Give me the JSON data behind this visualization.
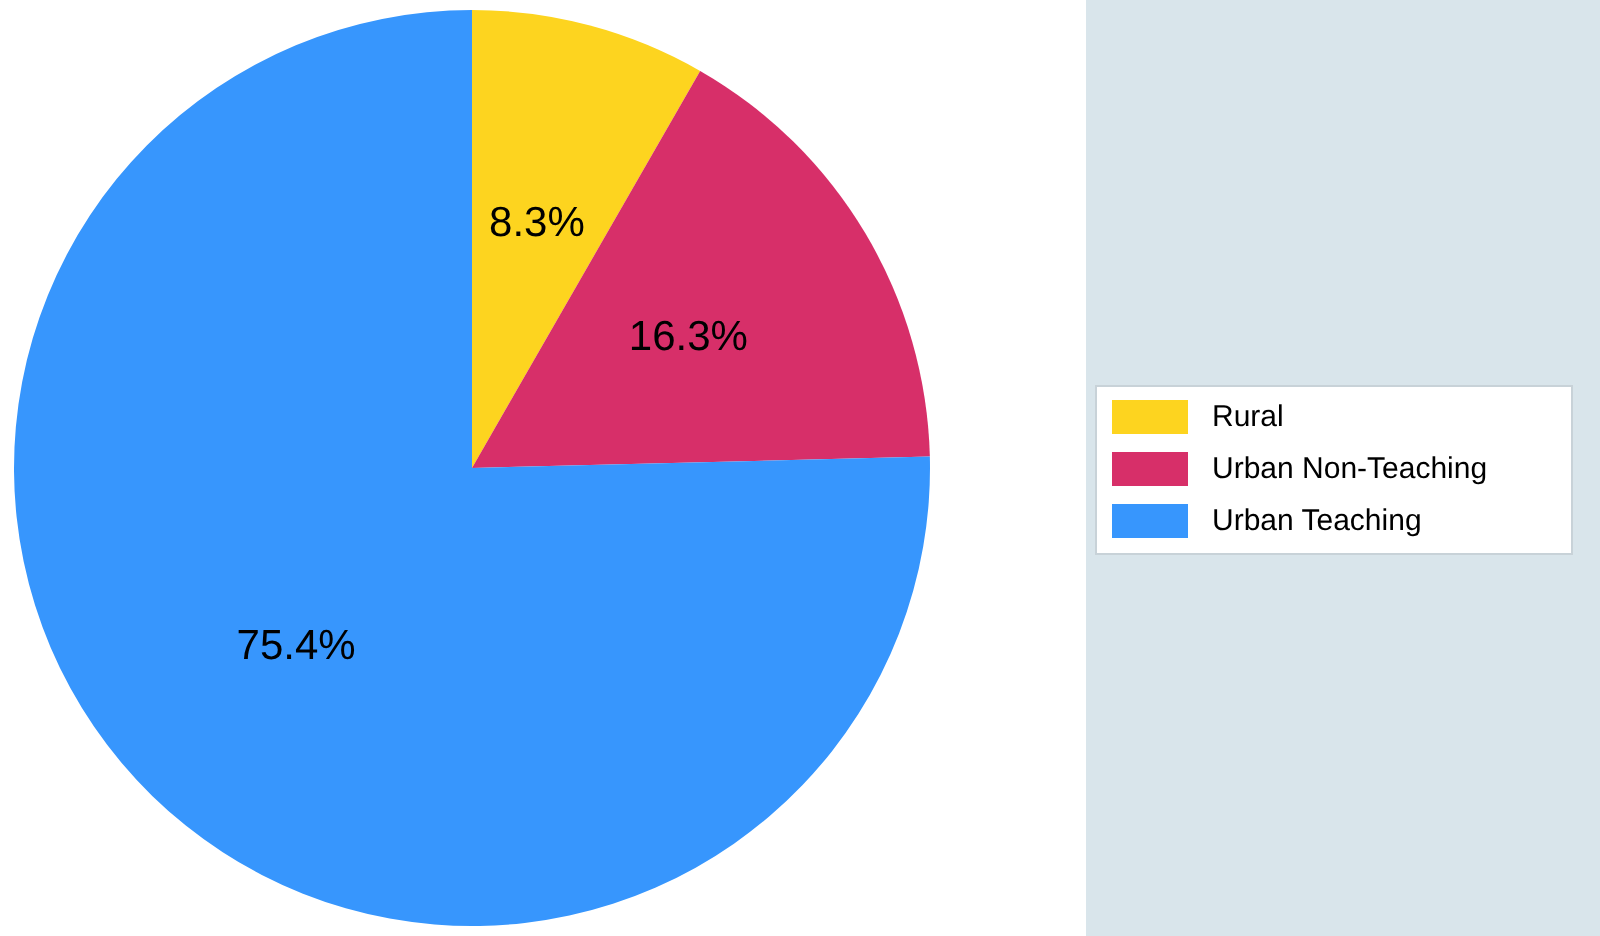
{
  "chart_data": {
    "type": "pie",
    "categories": [
      "Rural",
      "Urban Non-Teaching",
      "Urban Teaching"
    ],
    "values": [
      8.3,
      16.3,
      75.4
    ],
    "colors": [
      "#fdd41f",
      "#d72f69",
      "#3796fd"
    ],
    "value_labels": [
      "8.3%",
      "16.3%",
      "75.4%"
    ],
    "legend": "right"
  }
}
